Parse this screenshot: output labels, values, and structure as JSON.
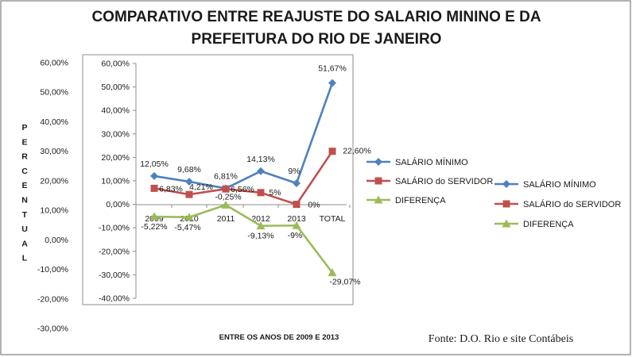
{
  "chart_data": {
    "type": "line",
    "title": "COMPARATIVO ENTRE REAJUSTE DO SALARIO MININO  E DA PREFEITURA DO RIO DE JANEIRO",
    "title_lines": [
      "COMPARATIVO ENTRE REAJUSTE DO SALARIO MININO  E DA",
      "PREFEITURA DO RIO DE JANEIRO"
    ],
    "ylabel": "PERCENTUAL",
    "xlabel": "ENTRE OS ANOS DE 2009 E 2013",
    "source": "Fonte: D.O. Rio e site Contábeis",
    "categories": [
      "2009",
      "2010",
      "2011",
      "2012",
      "2013",
      "TOTAL"
    ],
    "ylim": [
      -40,
      60
    ],
    "yticks": [
      "60,00%",
      "50,00%",
      "40,00%",
      "30,00%",
      "20,00%",
      "10,00%",
      "0,00%",
      "-10,00%",
      "-20,00%",
      "-30,00%",
      "-40,00%"
    ],
    "outer_ylim": [
      -30,
      60
    ],
    "outer_yticks": [
      "60,00%",
      "50,00%",
      "40,00%",
      "30,00%",
      "20,00%",
      "10,00%",
      "0,00%",
      "-10,00%",
      "-20,00%",
      "-30,00%"
    ],
    "grid": false,
    "legend_position": "right",
    "series": [
      {
        "name": "SALÁRIO MÍNIMO",
        "color": "#4f81bd",
        "marker": "diamond",
        "values": [
          12.05,
          9.68,
          6.81,
          14.13,
          9,
          51.67
        ],
        "labels": [
          "12,05%",
          "9,68%",
          "6,81%",
          "14,13%",
          "9%",
          "51,67%"
        ]
      },
      {
        "name": "SALÁRIO do SERVIDOR",
        "color": "#c0504d",
        "marker": "square",
        "values": [
          6.83,
          4.21,
          6.56,
          5,
          0,
          22.6
        ],
        "labels": [
          "6,83%",
          "4,21%",
          "6,56%",
          "5%",
          "0%",
          "22,60%"
        ]
      },
      {
        "name": "DIFERENÇA",
        "color": "#9bbb59",
        "marker": "triangle",
        "values": [
          -5.22,
          -5.47,
          -0.25,
          -9.13,
          -9,
          -29.07
        ],
        "labels": [
          "-5,22%",
          "-5,47%",
          "-0,25%",
          "-9,13%",
          "-9%",
          "-29,07%"
        ]
      }
    ]
  }
}
